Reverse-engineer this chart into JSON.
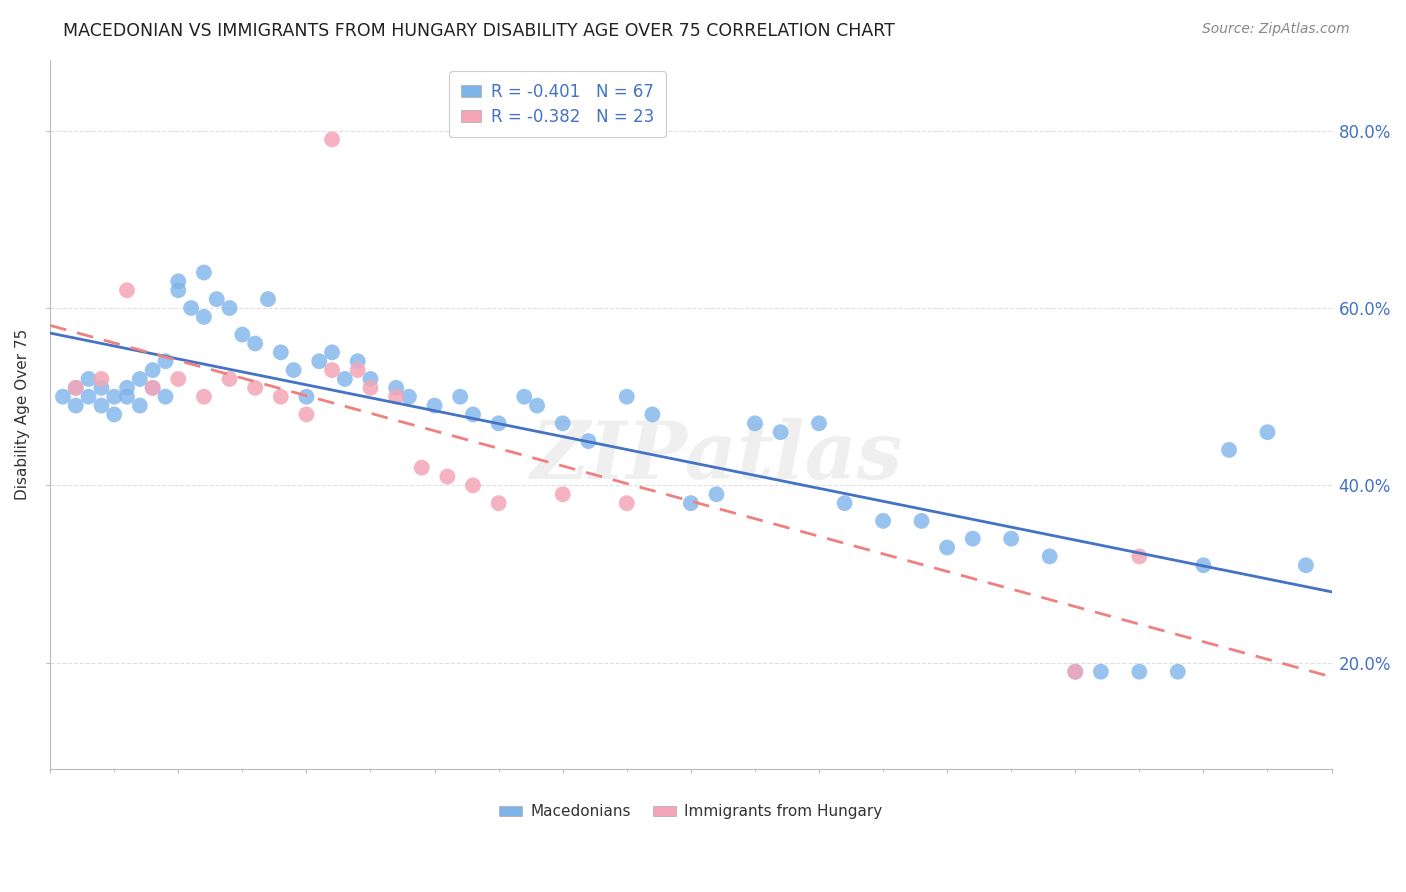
{
  "title": "MACEDONIAN VS IMMIGRANTS FROM HUNGARY DISABILITY AGE OVER 75 CORRELATION CHART",
  "source": "Source: ZipAtlas.com",
  "ylabel": "Disability Age Over 75",
  "yticks": [
    0.2,
    0.4,
    0.6,
    0.8
  ],
  "ytick_labels": [
    "20.0%",
    "40.0%",
    "60.0%",
    "80.0%"
  ],
  "xlim": [
    0.0,
    0.1
  ],
  "ylim": [
    0.08,
    0.88
  ],
  "legend_r1": "R = -0.401",
  "legend_n1": "N = 67",
  "legend_r2": "R = -0.382",
  "legend_n2": "N = 23",
  "blue_color": "#7EB4EA",
  "pink_color": "#F4A6B8",
  "blue_line_color": "#4472C4",
  "pink_line_color": "#F08080",
  "macedonian_x": [
    0.001,
    0.002,
    0.002,
    0.003,
    0.003,
    0.004,
    0.004,
    0.005,
    0.005,
    0.006,
    0.006,
    0.007,
    0.007,
    0.008,
    0.008,
    0.009,
    0.009,
    0.01,
    0.01,
    0.011,
    0.012,
    0.012,
    0.013,
    0.014,
    0.015,
    0.016,
    0.017,
    0.018,
    0.019,
    0.02,
    0.021,
    0.022,
    0.023,
    0.024,
    0.025,
    0.027,
    0.028,
    0.03,
    0.032,
    0.033,
    0.035,
    0.037,
    0.038,
    0.04,
    0.042,
    0.045,
    0.047,
    0.05,
    0.052,
    0.055,
    0.057,
    0.06,
    0.062,
    0.065,
    0.068,
    0.07,
    0.072,
    0.075,
    0.078,
    0.08,
    0.082,
    0.085,
    0.088,
    0.09,
    0.092,
    0.095,
    0.098
  ],
  "macedonian_y": [
    0.5,
    0.49,
    0.51,
    0.5,
    0.52,
    0.49,
    0.51,
    0.5,
    0.48,
    0.51,
    0.5,
    0.52,
    0.49,
    0.51,
    0.53,
    0.5,
    0.54,
    0.62,
    0.63,
    0.6,
    0.59,
    0.64,
    0.61,
    0.6,
    0.57,
    0.56,
    0.61,
    0.55,
    0.53,
    0.5,
    0.54,
    0.55,
    0.52,
    0.54,
    0.52,
    0.51,
    0.5,
    0.49,
    0.5,
    0.48,
    0.47,
    0.5,
    0.49,
    0.47,
    0.45,
    0.5,
    0.48,
    0.38,
    0.39,
    0.47,
    0.46,
    0.47,
    0.38,
    0.36,
    0.36,
    0.33,
    0.34,
    0.34,
    0.32,
    0.19,
    0.19,
    0.19,
    0.19,
    0.31,
    0.44,
    0.46,
    0.31
  ],
  "hungary_x": [
    0.002,
    0.004,
    0.006,
    0.008,
    0.01,
    0.012,
    0.014,
    0.016,
    0.018,
    0.02,
    0.022,
    0.024,
    0.025,
    0.027,
    0.029,
    0.031,
    0.033,
    0.035,
    0.04,
    0.045,
    0.08,
    0.085,
    0.022
  ],
  "hungary_y": [
    0.51,
    0.52,
    0.62,
    0.51,
    0.52,
    0.5,
    0.52,
    0.51,
    0.5,
    0.48,
    0.53,
    0.53,
    0.51,
    0.5,
    0.42,
    0.41,
    0.4,
    0.38,
    0.39,
    0.38,
    0.19,
    0.32,
    0.79
  ],
  "watermark": "ZIPatlas",
  "background_color": "#FFFFFF",
  "grid_color": "#E0E0E0"
}
